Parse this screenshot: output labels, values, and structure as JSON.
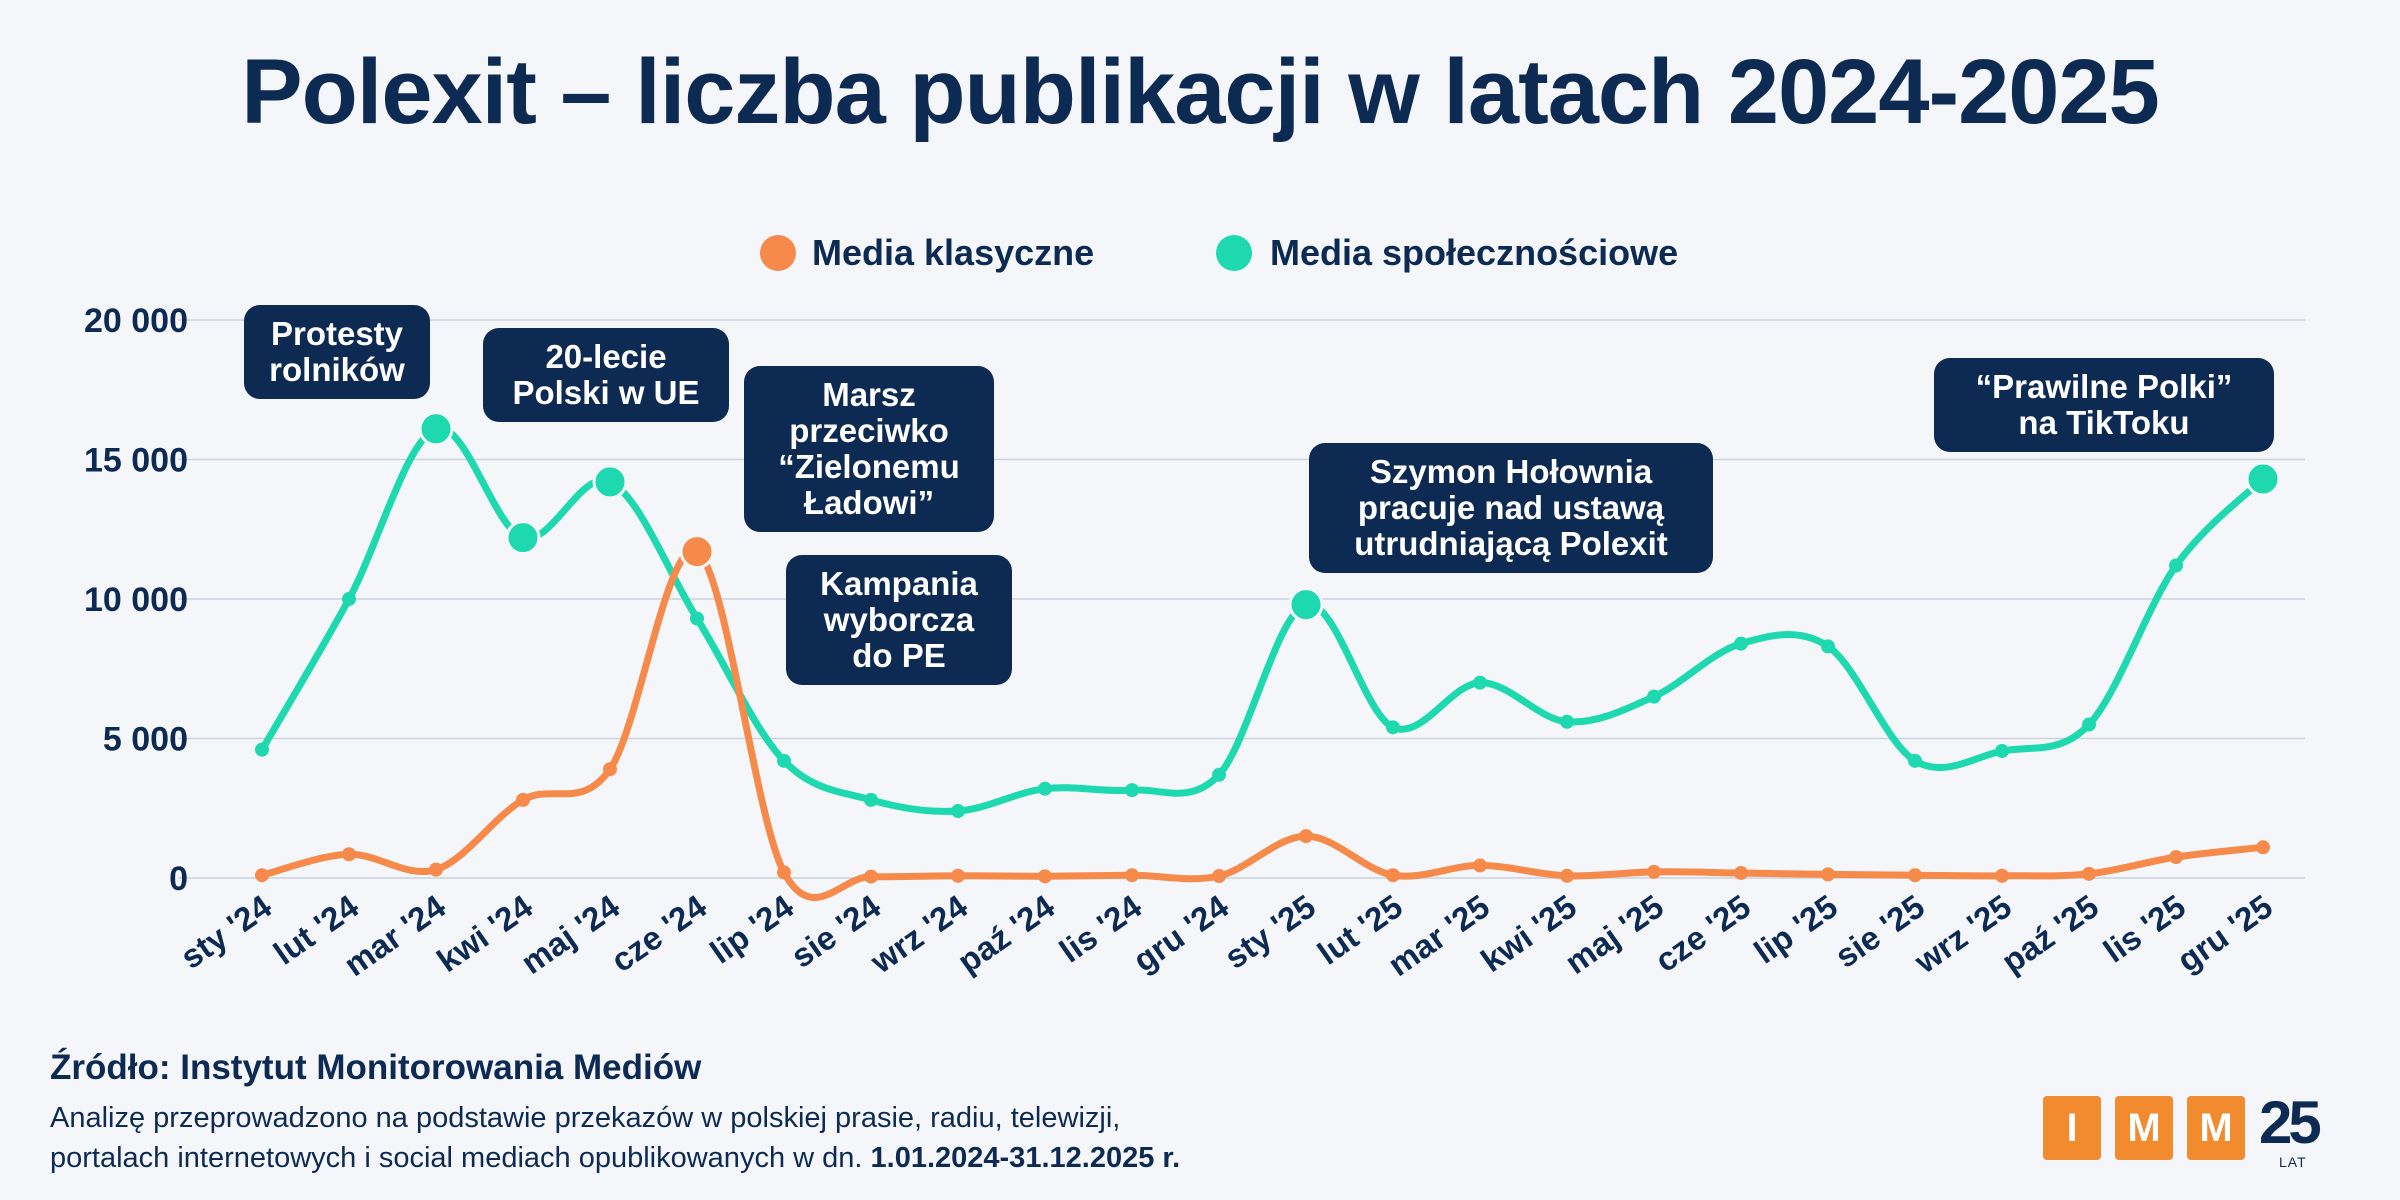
{
  "title": "Polexit – liczba publikacji w latach 2024-2025",
  "colors": {
    "classic": "#f58a4b",
    "social": "#1ed8b0",
    "navy": "#0d2a52",
    "grid": "#c9d2de",
    "background": "#f4f6fa",
    "logo_orange": "#f28a2e"
  },
  "chart_data": {
    "type": "line",
    "title": "Polexit – liczba publikacji w latach 2024-2025",
    "xlabel": "",
    "ylabel": "",
    "ylim": [
      0,
      20000
    ],
    "y_ticks": [
      0,
      5000,
      10000,
      15000,
      20000
    ],
    "y_tick_labels": [
      "0",
      "5 000",
      "10 000",
      "15 000",
      "20 000"
    ],
    "legend_position": "top-center",
    "grid": true,
    "categories": [
      "sty '24",
      "lut '24",
      "mar '24",
      "kwi '24",
      "maj '24",
      "cze '24",
      "lip '24",
      "sie '24",
      "wrz '24",
      "paź '24",
      "lis '24",
      "gru '24",
      "sty '25",
      "lut '25",
      "mar '25",
      "kwi '25",
      "maj '25",
      "cze '25",
      "lip '25",
      "sie '25",
      "wrz '25",
      "paź '25",
      "lis '25",
      "gru '25"
    ],
    "series": [
      {
        "name": "Media klasyczne",
        "color": "#f58a4b",
        "values": [
          100,
          850,
          300,
          2800,
          3900,
          11700,
          200,
          50,
          80,
          60,
          100,
          70,
          1500,
          100,
          450,
          80,
          220,
          180,
          130,
          100,
          80,
          150,
          750,
          1100
        ],
        "highlight_indices": [
          5
        ]
      },
      {
        "name": "Media społecznościowe",
        "color": "#1ed8b0",
        "values": [
          4600,
          10000,
          16100,
          12200,
          14200,
          9300,
          4200,
          2800,
          2400,
          3200,
          3150,
          3700,
          9800,
          5400,
          7000,
          5600,
          6500,
          8400,
          8300,
          4200,
          4550,
          5500,
          11200,
          14300
        ],
        "highlight_indices": [
          2,
          3,
          4,
          12,
          23
        ]
      }
    ],
    "annotations": [
      {
        "lines": [
          "Protesty",
          "rolników"
        ],
        "category_index": 2
      },
      {
        "lines": [
          "20-lecie",
          "Polski w UE"
        ],
        "category_index": 4
      },
      {
        "lines": [
          "Marsz",
          "przeciwko",
          "“Zielonemu",
          "Ładowi”"
        ],
        "category_index": 3
      },
      {
        "lines": [
          "Kampania",
          "wyborcza",
          "do PE"
        ],
        "category_index": 4
      },
      {
        "lines": [
          "Szymon Hołownia",
          "pracuje nad ustawą",
          "utrudniającą Polexit"
        ],
        "category_index": 12
      },
      {
        "lines": [
          "“Prawilne Polki”",
          "na TikToku"
        ],
        "category_index": 23
      }
    ]
  },
  "footer": {
    "source": "Źródło: Instytut Monitorowania Mediów",
    "note_line1": "Analizę przeprowadzono na podstawie przekazów w polskiej prasie, radiu, telewizji,",
    "note_line2": "portalach internetowych i social mediach opublikowanych w dn.",
    "note_dates": "1.01.2024-31.12.2025 r."
  },
  "logo": {
    "letters": [
      "I",
      "M",
      "M"
    ],
    "years": "25",
    "lat": "LAT"
  }
}
